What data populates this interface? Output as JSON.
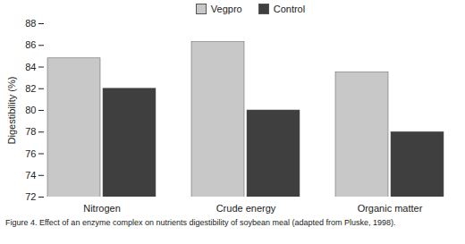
{
  "chart_data": {
    "type": "bar",
    "y_label": "Digestibility (%)",
    "caption": "Figure 4. Effect of an enzyme complex on nutrients digestibility of soybean meal (adapted from Pluske, 1998).",
    "categories": [
      "Nitrogen",
      "Crude energy",
      "Organic matter"
    ],
    "series": [
      {
        "name": "Vegpro",
        "color": "#c8c8c8",
        "values": [
          84.8,
          86.3,
          83.5
        ]
      },
      {
        "name": "Control",
        "color": "#3f3f3f",
        "values": [
          82.0,
          80.0,
          78.0
        ]
      }
    ],
    "ylim": [
      72,
      88
    ],
    "yticks": [
      72,
      74,
      76,
      78,
      80,
      82,
      84,
      86,
      88
    ],
    "grid": false,
    "legend": "top"
  }
}
